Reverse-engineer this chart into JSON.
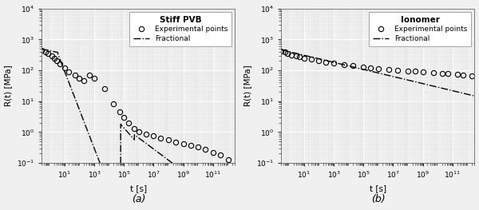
{
  "title_a": "Stiff PVB",
  "title_b": "Ionomer",
  "xlabel": "t [s]",
  "ylabel": "R(t) [MPa]",
  "label_a": "(a)",
  "label_b": "(b)",
  "legend_exp": "Experimental points",
  "legend_frac": "Fractional",
  "xlim": [
    0.3,
    3000000000000.0
  ],
  "ylim": [
    0.1,
    10000.0
  ],
  "pvb_exp_t": [
    0.3,
    0.5,
    0.8,
    1.5,
    2.0,
    3.0,
    5.0,
    10.0,
    20.0,
    50.0,
    100.0,
    200.0,
    500.0,
    1000.0,
    5000.0,
    20000.0,
    50000.0,
    100000.0,
    200000.0,
    500000.0,
    1000000.0,
    3000000.0,
    10000000.0,
    30000000.0,
    100000000.0,
    300000000.0,
    1000000000.0,
    3000000000.0,
    10000000000.0,
    30000000000.0,
    100000000000.0,
    300000000000.0,
    1000000000000.0
  ],
  "pvb_exp_R": [
    450,
    400,
    360,
    290,
    240,
    200,
    160,
    120,
    90,
    70,
    55,
    45,
    70,
    55,
    25,
    8.0,
    4.5,
    3.0,
    2.0,
    1.3,
    1.0,
    0.85,
    0.75,
    0.65,
    0.55,
    0.48,
    0.42,
    0.37,
    0.32,
    0.28,
    0.22,
    0.18,
    0.13
  ],
  "ion_exp_t": [
    0.3,
    0.5,
    0.8,
    1.5,
    3.0,
    5.0,
    10.0,
    30.0,
    100.0,
    300.0,
    1000.0,
    5000.0,
    20000.0,
    100000.0,
    300000.0,
    1000000.0,
    5000000.0,
    20000000.0,
    100000000.0,
    300000000.0,
    1000000000.0,
    5000000000.0,
    20000000000.0,
    50000000000.0,
    200000000000.0,
    500000000000.0,
    2000000000000.0
  ],
  "ion_exp_R": [
    430,
    390,
    360,
    320,
    290,
    270,
    250,
    225,
    200,
    185,
    170,
    155,
    145,
    130,
    122,
    115,
    106,
    100,
    95,
    92,
    88,
    84,
    80,
    78,
    74,
    70,
    65
  ],
  "bg_color": "#f0f0f0",
  "grid_major_color": "#ffffff",
  "grid_minor_color": "#e0e0e0",
  "line_color": "#000000"
}
